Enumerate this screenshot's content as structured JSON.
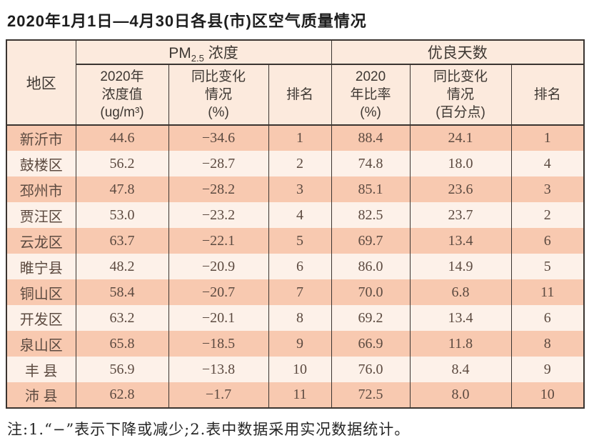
{
  "title": "2020年1月1日—4月30日各县(市)区空气质量情况",
  "table": {
    "region_header": "地区",
    "groups": [
      {
        "prefix": "PM",
        "subscript": "2.5",
        "suffix": " 浓度"
      },
      {
        "label": "优良天数"
      }
    ],
    "subheaders": [
      "2020年\n浓度值\n(ug/m³)",
      "同比变化\n情况\n(%)",
      "排名",
      "2020\n年比率\n(%)",
      "同比变化\n情况\n(百分点)",
      "排名"
    ],
    "rows": [
      [
        "新沂市",
        "44.6",
        "−34.6",
        "1",
        "88.4",
        "24.1",
        "1"
      ],
      [
        "鼓楼区",
        "56.2",
        "−28.7",
        "2",
        "74.8",
        "18.0",
        "4"
      ],
      [
        "邳州市",
        "47.8",
        "−28.2",
        "3",
        "85.1",
        "23.6",
        "3"
      ],
      [
        "贾汪区",
        "53.0",
        "−23.2",
        "4",
        "82.5",
        "23.7",
        "2"
      ],
      [
        "云龙区",
        "63.7",
        "−22.1",
        "5",
        "69.7",
        "13.4",
        "6"
      ],
      [
        "睢宁县",
        "48.2",
        "−20.9",
        "6",
        "86.0",
        "14.9",
        "5"
      ],
      [
        "铜山区",
        "58.4",
        "−20.7",
        "7",
        "70.0",
        "6.8",
        "11"
      ],
      [
        "开发区",
        "63.2",
        "−20.1",
        "8",
        "69.2",
        "13.4",
        "6"
      ],
      [
        "泉山区",
        "65.8",
        "−18.5",
        "9",
        "66.9",
        "11.8",
        "8"
      ],
      [
        "丰 县",
        "56.9",
        "−13.8",
        "10",
        "76.0",
        "8.4",
        "9"
      ],
      [
        "沛 县",
        "62.8",
        "−1.7",
        "11",
        "72.5",
        "8.0",
        "10"
      ]
    ]
  },
  "footnote": "注:1.“−”表示下降或减少;2.表中数据采用实况数据统计。",
  "colors": {
    "row_odd_bg": "#f8c9b0",
    "row_even_bg": "#fdf1e9",
    "header_bg": "#fceadd",
    "border": "#3a3430",
    "header_text": "#3e3833",
    "body_text": "#5c4a40",
    "title_text": "#1d1d1d",
    "footnote_text": "#262626"
  }
}
